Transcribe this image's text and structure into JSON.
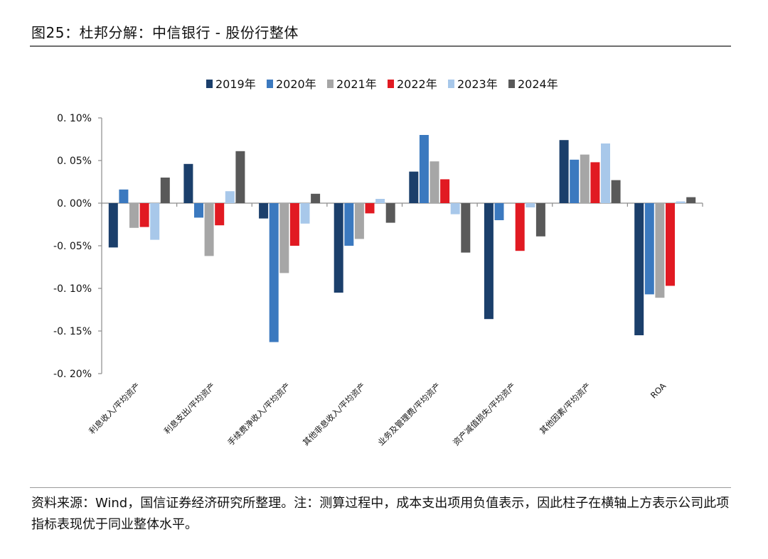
{
  "figure": {
    "title": "图25：杜邦分解：中信银行 - 股份行整体",
    "source_note": "资料来源：Wind，国信证券经济研究所整理。注：测算过程中，成本支出项用负值表示，因此柱子在横轴上方表示公司此项指标表现优于同业整体水平。"
  },
  "colors": {
    "2019年": "#1b3f6b",
    "2020年": "#3b79bf",
    "2021年": "#a6a6a6",
    "2022年": "#e11a22",
    "2023年": "#a8c8ea",
    "2024年": "#595959"
  },
  "chart_data": {
    "type": "bar",
    "title": "",
    "xlabel": "",
    "ylabel": "",
    "ylim": [
      -0.2,
      0.1
    ],
    "y_ticks": [
      "0. 10%",
      "0. 05%",
      "0. 00%",
      "-0. 05%",
      "-0. 10%",
      "-0. 15%",
      "-0. 20%"
    ],
    "y_tick_values": [
      0.1,
      0.05,
      0.0,
      -0.05,
      -0.1,
      -0.15,
      -0.2
    ],
    "unit": "%",
    "legend_position": "top",
    "categories": [
      "利息收入/平均资产",
      "利息支出/平均资产",
      "手续费净收入/平均资产",
      "其他非息收入/平均资产",
      "业务及管理费/平均资产",
      "资产减值损失/平均资产",
      "其他因素/平均资产",
      "ROA"
    ],
    "series": [
      {
        "name": "2019年",
        "values": [
          -0.052,
          0.046,
          -0.018,
          -0.105,
          0.037,
          -0.136,
          0.074,
          -0.155
        ]
      },
      {
        "name": "2020年",
        "values": [
          0.016,
          -0.017,
          -0.163,
          -0.05,
          0.08,
          -0.02,
          0.051,
          -0.107
        ]
      },
      {
        "name": "2021年",
        "values": [
          -0.029,
          -0.062,
          -0.082,
          -0.042,
          0.049,
          0.0,
          0.057,
          -0.111
        ]
      },
      {
        "name": "2022年",
        "values": [
          -0.028,
          -0.026,
          -0.05,
          -0.012,
          0.028,
          -0.056,
          0.048,
          -0.097
        ]
      },
      {
        "name": "2023年",
        "values": [
          -0.043,
          0.014,
          -0.024,
          0.005,
          -0.013,
          -0.005,
          0.07,
          0.002
        ]
      },
      {
        "name": "2024年",
        "values": [
          0.03,
          0.061,
          0.011,
          -0.023,
          -0.058,
          -0.039,
          0.027,
          0.007
        ]
      }
    ]
  }
}
